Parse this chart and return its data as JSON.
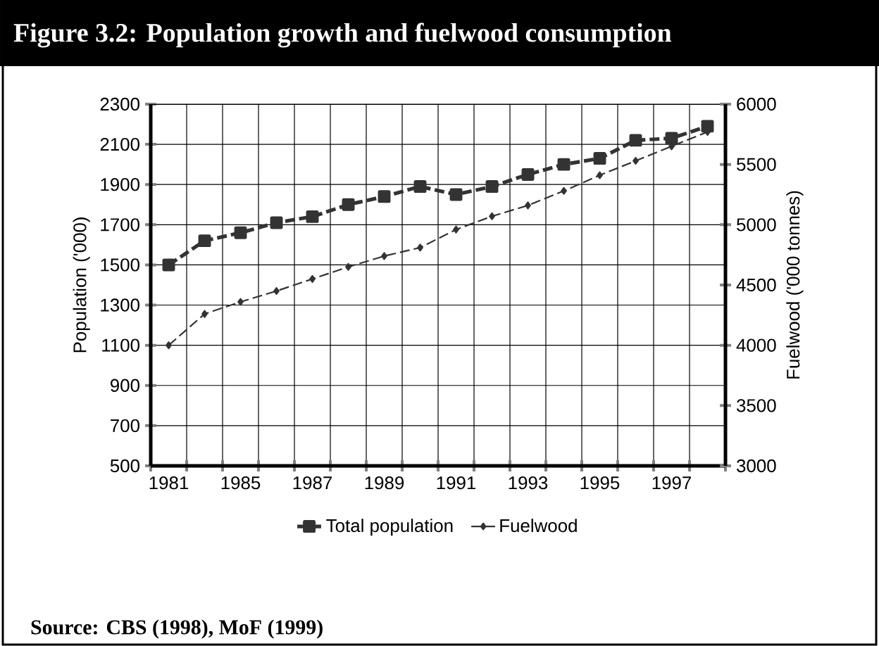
{
  "chart_data": {
    "type": "line",
    "title": "Figure 3.2: Population growth and fuelwood consumption",
    "ylabel": "Population ('000)",
    "y2label": "Fuelwood ('000 tonnes)",
    "categories": [
      "1981",
      null,
      "1985",
      null,
      "1987",
      null,
      "1989",
      null,
      "1991",
      null,
      "1993",
      null,
      "1995",
      null,
      "1997",
      null
    ],
    "series": [
      {
        "name": "Total population",
        "color": "#333333",
        "marker": "square",
        "line_style": "dashed",
        "values": [
          1500,
          1620,
          1660,
          1710,
          1740,
          1800,
          1840,
          1890,
          1850,
          1890,
          1950,
          2000,
          2030,
          2120,
          2130,
          2190
        ]
      },
      {
        "name": "Fuelwood",
        "color": "#333333",
        "marker": "diamond",
        "line_style": "dashed",
        "axis": "y2",
        "values": [
          4000,
          4260,
          4360,
          4450,
          4550,
          4650,
          4740,
          4810,
          4960,
          5070,
          5160,
          5280,
          5410,
          5530,
          5650,
          5770
        ]
      }
    ],
    "ylim": [
      500,
      2300
    ],
    "yticks": [
      500,
      700,
      900,
      1100,
      1300,
      1500,
      1700,
      1900,
      2100,
      2300
    ],
    "y2lim": [
      3000,
      6000
    ],
    "y2ticks": [
      3000,
      3500,
      4000,
      4500,
      5000,
      5500,
      6000
    ],
    "grid": true,
    "legend": "bottom",
    "annotations": [
      "Source: CBS (1998), MoF (1999)"
    ]
  }
}
